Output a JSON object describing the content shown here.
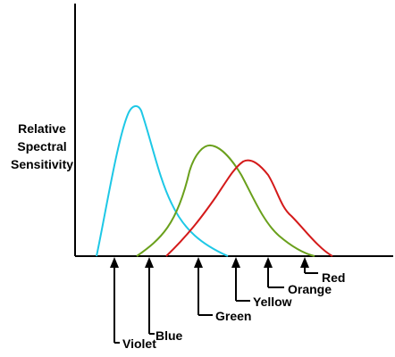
{
  "ylabel": {
    "line1": "Relative",
    "line2": "Spectral",
    "line3": "Sensitivity"
  },
  "curves": [
    {
      "name": "blue-cone-curve",
      "color": "#1ec8e6"
    },
    {
      "name": "green-cone-curve",
      "color": "#6aa01c"
    },
    {
      "name": "red-cone-curve",
      "color": "#d41a1a"
    }
  ],
  "colors": [
    "Violet",
    "Blue",
    "Green",
    "Yellow",
    "Orange",
    "Red"
  ]
}
